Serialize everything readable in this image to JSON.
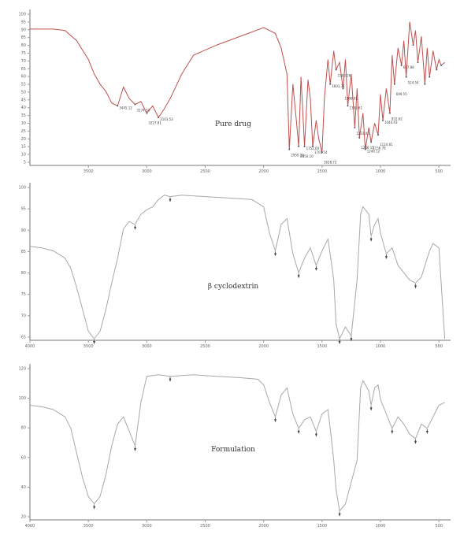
{
  "chart_data": [
    {
      "type": "line",
      "panel_label": "Pure drug",
      "color": "#c0504d",
      "xlim": [
        4000,
        400
      ],
      "ylim": [
        0,
        1
      ],
      "x_ticks": [
        "3500",
        "3000",
        "2500",
        "2000",
        "1500",
        "1000",
        "500"
      ],
      "y_ticks": [
        "100",
        "95",
        "90",
        "85",
        "80",
        "75",
        "70",
        "65",
        "60",
        "55",
        "50",
        "45",
        "40",
        "35",
        "30",
        "25",
        "20",
        "15",
        "10",
        "5"
      ],
      "series": [
        {
          "x": [
            4000,
            3800,
            3700,
            3600,
            3500,
            3450,
            3400,
            3350,
            3300,
            3250,
            3200,
            3150,
            3100,
            3050,
            3000,
            2950,
            2900,
            2850,
            2800,
            2700,
            2600,
            2400,
            2200,
            2000,
            1900,
            1850,
            1800,
            1780,
            1750,
            1720,
            1700,
            1680,
            1650,
            1620,
            1600,
            1580,
            1550,
            1530,
            1500,
            1480,
            1450,
            1430,
            1400,
            1380,
            1350,
            1320,
            1300,
            1280,
            1250,
            1220,
            1200,
            1180,
            1150,
            1130,
            1100,
            1080,
            1050,
            1020,
            1000,
            980,
            950,
            920,
            900,
            880,
            850,
            820,
            800,
            780,
            750,
            720,
            700,
            680,
            650,
            620,
            600,
            580,
            550,
            520,
            500,
            480,
            450
          ],
          "y": [
            0.93,
            0.93,
            0.92,
            0.85,
            0.72,
            0.62,
            0.55,
            0.5,
            0.42,
            0.4,
            0.53,
            0.45,
            0.41,
            0.43,
            0.35,
            0.4,
            0.32,
            0.38,
            0.45,
            0.62,
            0.75,
            0.82,
            0.88,
            0.94,
            0.9,
            0.8,
            0.62,
            0.1,
            0.55,
            0.3,
            0.12,
            0.6,
            0.12,
            0.58,
            0.45,
            0.12,
            0.3,
            0.18,
            0.08,
            0.45,
            0.72,
            0.55,
            0.78,
            0.65,
            0.7,
            0.52,
            0.72,
            0.4,
            0.62,
            0.25,
            0.52,
            0.18,
            0.35,
            0.1,
            0.25,
            0.15,
            0.28,
            0.2,
            0.48,
            0.3,
            0.52,
            0.35,
            0.75,
            0.55,
            0.8,
            0.68,
            0.85,
            0.6,
            0.98,
            0.82,
            0.92,
            0.7,
            0.88,
            0.55,
            0.8,
            0.6,
            0.78,
            0.65,
            0.72,
            0.68,
            0.7
          ]
        }
      ],
      "peak_labels": [
        "3445.12",
        "3174.34",
        "3227.81",
        "3103.53",
        "2950.20",
        "2850.10",
        "1752.60",
        "1701.54",
        "1628.72",
        "1601.31",
        "1500.26",
        "1406.81",
        "1395.61",
        "1331.05",
        "1286.15",
        "1240.12",
        "1156.78",
        "1124.81",
        "1040.43",
        "832.62",
        "699.55",
        "617.88",
        "524.54"
      ]
    },
    {
      "type": "line",
      "panel_label": "β cyclodextrin",
      "color": "#a8a8a8",
      "xlim": [
        4000,
        400
      ],
      "ylim": [
        0,
        1
      ],
      "x_ticks": [
        "4000",
        "3500",
        "3000",
        "2500",
        "2000",
        "1500",
        "1000",
        "500"
      ],
      "y_ticks": [
        "100",
        "95",
        "90",
        "85",
        "80",
        "75",
        "70",
        "65"
      ],
      "series": [
        {
          "x": [
            4000,
            3900,
            3800,
            3700,
            3650,
            3600,
            3550,
            3500,
            3450,
            3400,
            3350,
            3300,
            3250,
            3200,
            3150,
            3100,
            3050,
            3000,
            2950,
            2900,
            2850,
            2800,
            2700,
            2500,
            2300,
            2100,
            2000,
            1950,
            1900,
            1850,
            1800,
            1750,
            1700,
            1650,
            1600,
            1550,
            1500,
            1450,
            1420,
            1400,
            1380,
            1350,
            1300,
            1250,
            1200,
            1170,
            1150,
            1100,
            1080,
            1050,
            1020,
            1000,
            950,
            900,
            850,
            800,
            750,
            700,
            650,
            600,
            580,
            550,
            500,
            450
          ],
          "y": [
            0.63,
            0.62,
            0.6,
            0.55,
            0.48,
            0.35,
            0.2,
            0.05,
            0.0,
            0.05,
            0.2,
            0.38,
            0.55,
            0.75,
            0.8,
            0.78,
            0.85,
            0.88,
            0.9,
            0.95,
            0.98,
            0.97,
            0.98,
            0.97,
            0.96,
            0.95,
            0.9,
            0.72,
            0.6,
            0.78,
            0.82,
            0.58,
            0.45,
            0.55,
            0.62,
            0.5,
            0.6,
            0.68,
            0.52,
            0.4,
            0.1,
            0.0,
            0.08,
            0.02,
            0.4,
            0.85,
            0.9,
            0.85,
            0.7,
            0.78,
            0.82,
            0.72,
            0.58,
            0.62,
            0.5,
            0.45,
            0.4,
            0.38,
            0.42,
            0.55,
            0.6,
            0.65,
            0.62,
            0.0
          ]
        }
      ]
    },
    {
      "type": "line",
      "panel_label": "Formulation",
      "color": "#a8a8a8",
      "xlim": [
        4000,
        400
      ],
      "ylim": [
        0,
        1
      ],
      "x_ticks": [
        "4000",
        "3500",
        "3000",
        "2500",
        "2000",
        "1500",
        "1000",
        "500"
      ],
      "y_ticks": [
        "120",
        "100",
        "80",
        "60",
        "40",
        "20"
      ],
      "series": [
        {
          "x": [
            4000,
            3900,
            3800,
            3700,
            3650,
            3600,
            3550,
            3500,
            3450,
            3400,
            3350,
            3300,
            3250,
            3200,
            3150,
            3100,
            3050,
            3000,
            2900,
            2800,
            2600,
            2400,
            2200,
            2050,
            2000,
            1950,
            1900,
            1850,
            1800,
            1750,
            1700,
            1650,
            1600,
            1550,
            1500,
            1450,
            1420,
            1400,
            1380,
            1350,
            1300,
            1250,
            1200,
            1170,
            1150,
            1100,
            1080,
            1050,
            1020,
            1000,
            950,
            900,
            850,
            800,
            750,
            700,
            650,
            600,
            550,
            500,
            450
          ],
          "y": [
            0.78,
            0.77,
            0.75,
            0.7,
            0.62,
            0.45,
            0.28,
            0.15,
            0.1,
            0.15,
            0.3,
            0.5,
            0.65,
            0.7,
            0.6,
            0.5,
            0.8,
            0.98,
            0.99,
            0.98,
            0.99,
            0.98,
            0.97,
            0.96,
            0.92,
            0.8,
            0.7,
            0.85,
            0.9,
            0.72,
            0.62,
            0.68,
            0.7,
            0.6,
            0.72,
            0.75,
            0.55,
            0.4,
            0.2,
            0.05,
            0.1,
            0.25,
            0.4,
            0.9,
            0.95,
            0.88,
            0.78,
            0.9,
            0.92,
            0.82,
            0.72,
            0.62,
            0.7,
            0.65,
            0.58,
            0.55,
            0.65,
            0.62,
            0.7,
            0.78,
            0.8
          ]
        }
      ]
    }
  ]
}
